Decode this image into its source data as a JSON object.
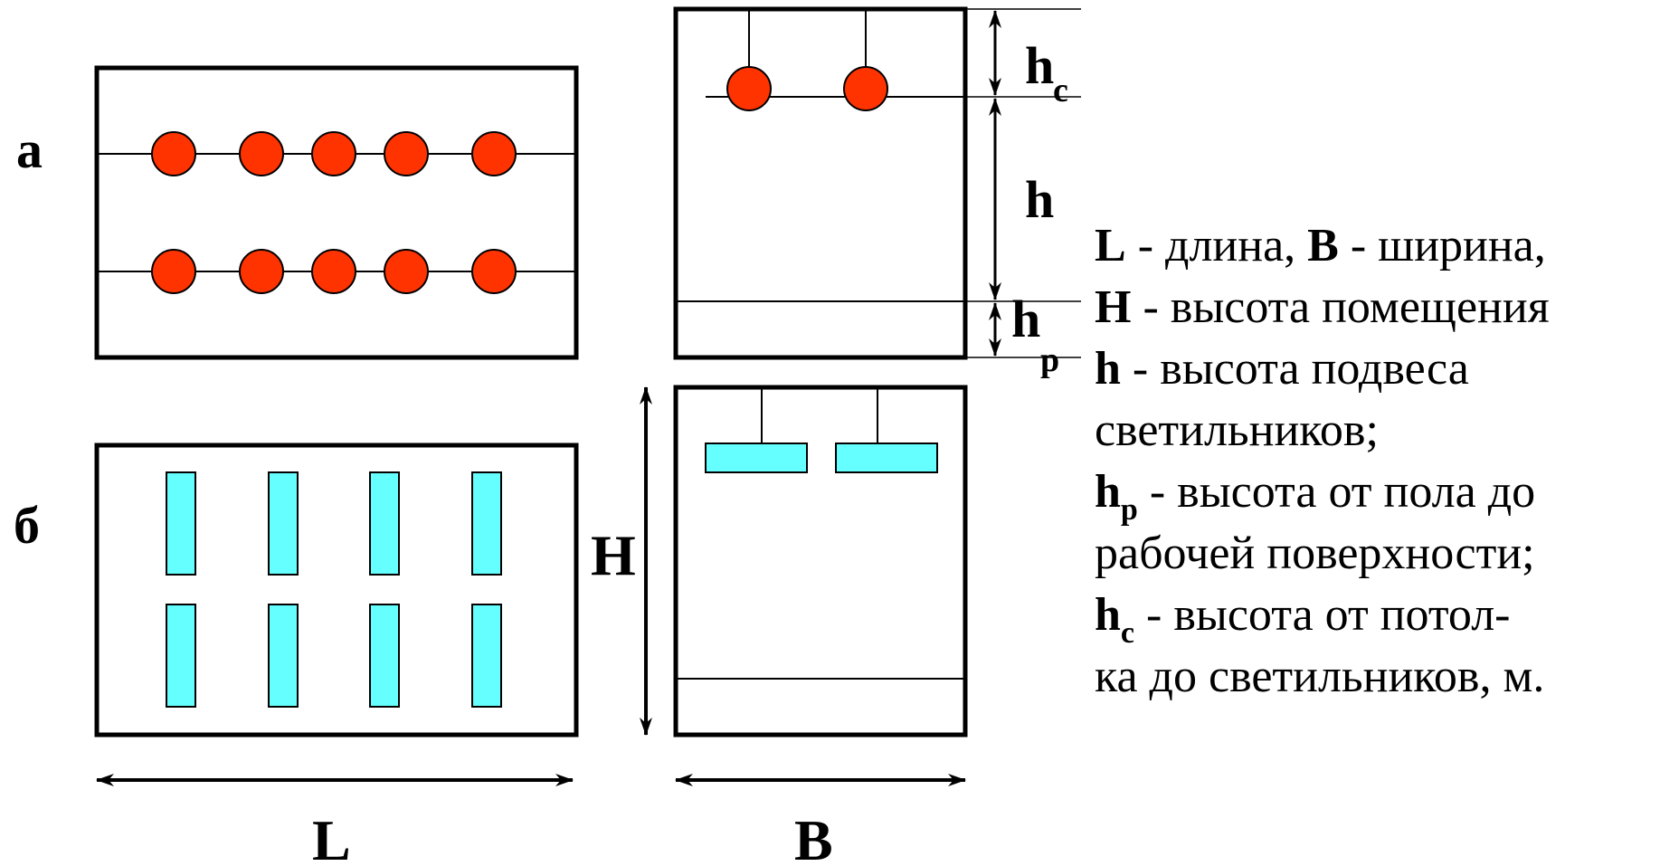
{
  "labels": {
    "variant_a": "а",
    "variant_b": "б",
    "dim_L": "L",
    "dim_B": "B",
    "dim_H": "H",
    "dim_h": "h",
    "dim_hc_main": "h",
    "dim_hc_sub": "c",
    "dim_hp_main": "h",
    "dim_hp_sub": "p"
  },
  "legend": {
    "line1_L": "L",
    "line1_L_text": " - длина, ",
    "line1_B": "B",
    "line1_B_text": " - ширина,",
    "line2_H": "H",
    "line2_text": " - высота помещения",
    "line3_h": "h",
    "line3_text": " - высота подвеса",
    "line4_text": "светильников;",
    "line5_hp_main": "h",
    "line5_hp_sub": "p",
    "line5_text": " - высота от пола до",
    "line6_text": "рабочей поверхности;",
    "line7_hc_main": "h",
    "line7_hc_sub": "c",
    "line7_text": " - высота от потол-",
    "line8_text": "ка до светильников, м."
  },
  "colors": {
    "round_lamp": "#ff3300",
    "fluorescent_lamp": "#66ffff",
    "outline": "#000000"
  }
}
